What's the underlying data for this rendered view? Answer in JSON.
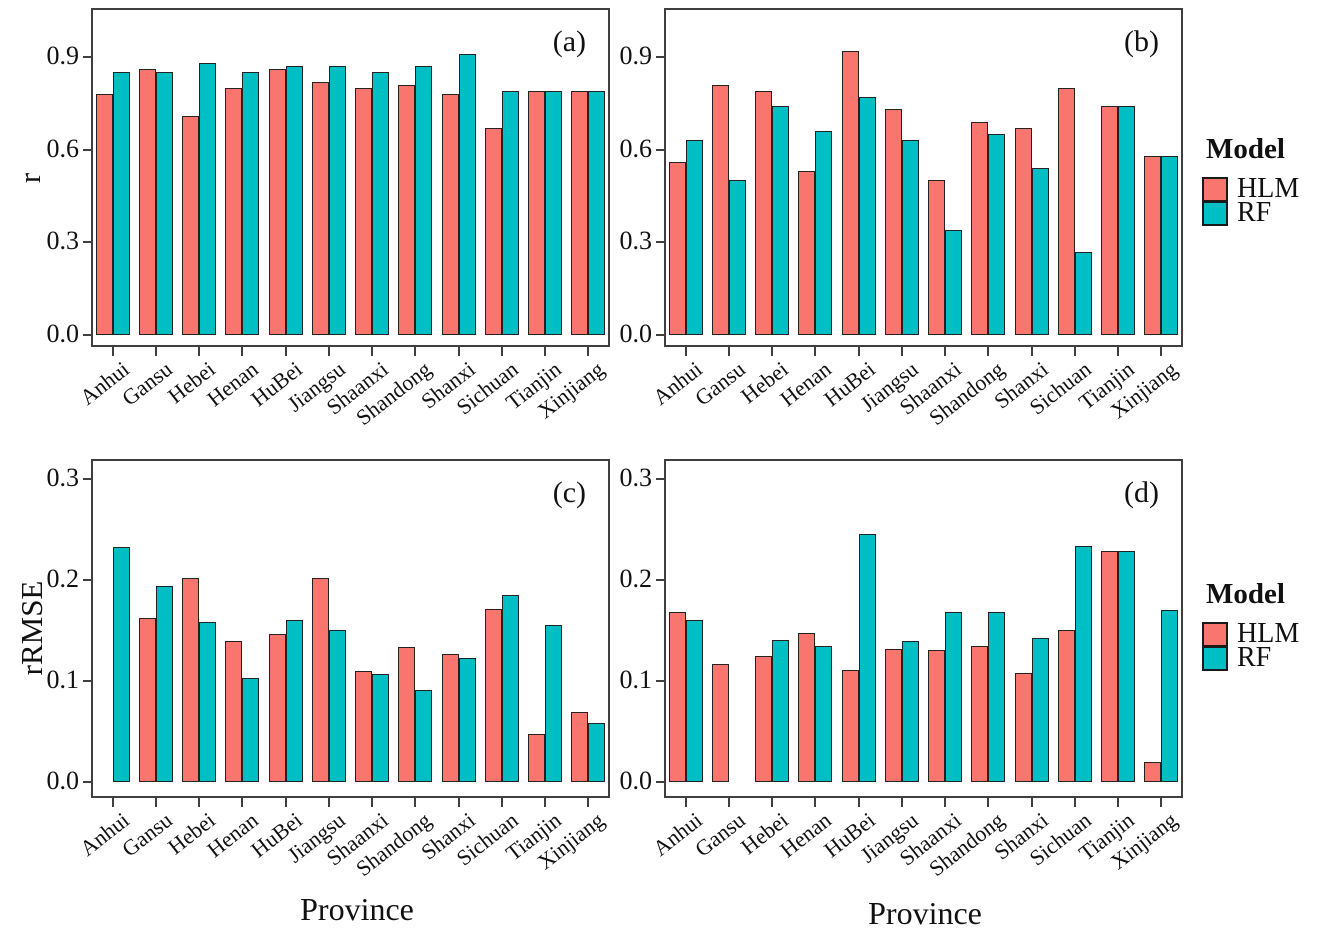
{
  "axis": {
    "x_title": "Province",
    "y_title_top": "r",
    "y_title_bottom": "rRMSE"
  },
  "legend": {
    "title": "Model",
    "entries": [
      {
        "label": "HLM",
        "color": "#F8766D"
      },
      {
        "label": "RF",
        "color": "#00BFC4"
      }
    ]
  },
  "chart_data": {
    "type": "bar",
    "grid": "off",
    "legend_position": "right",
    "categories": [
      "Anhui",
      "Gansu",
      "Hebei",
      "Henan",
      "HuBei",
      "Jiangsu",
      "Shaanxi",
      "Shandong",
      "Shanxi",
      "Sichuan",
      "Tianjin",
      "Xinjiang"
    ],
    "panels": [
      {
        "tag": "(a)",
        "metric": "r",
        "ylim": [
          0,
          1.05
        ],
        "yticks": [
          0.0,
          0.3,
          0.6,
          0.9
        ],
        "tick_decimals": 1,
        "series": [
          {
            "name": "HLM",
            "values": [
              0.78,
              0.86,
              0.71,
              0.8,
              0.86,
              0.82,
              0.8,
              0.81,
              0.78,
              0.67,
              0.79,
              0.79
            ]
          },
          {
            "name": "RF",
            "values": [
              0.85,
              0.85,
              0.88,
              0.85,
              0.87,
              0.87,
              0.85,
              0.87,
              0.91,
              0.79,
              0.79,
              0.79
            ]
          }
        ]
      },
      {
        "tag": "(b)",
        "metric": "r",
        "ylim": [
          0,
          1.05
        ],
        "yticks": [
          0.0,
          0.3,
          0.6,
          0.9
        ],
        "tick_decimals": 1,
        "series": [
          {
            "name": "HLM",
            "values": [
              0.56,
              0.81,
              0.79,
              0.53,
              0.92,
              0.73,
              0.5,
              0.69,
              0.67,
              0.8,
              0.74,
              0.58
            ]
          },
          {
            "name": "RF",
            "values": [
              0.63,
              0.5,
              0.74,
              0.66,
              0.77,
              0.63,
              0.34,
              0.65,
              0.54,
              0.27,
              0.74,
              0.58
            ]
          }
        ]
      },
      {
        "tag": "(c)",
        "metric": "rRMSE",
        "ylim": [
          0,
          0.318
        ],
        "yticks": [
          0.0,
          0.1,
          0.2,
          0.3
        ],
        "tick_decimals": 1,
        "series": [
          {
            "name": "HLM",
            "values": [
              null,
              0.162,
              0.202,
              0.14,
              0.147,
              0.202,
              0.11,
              0.134,
              0.127,
              0.171,
              0.048,
              0.069
            ]
          },
          {
            "name": "RF",
            "values": [
              0.233,
              0.194,
              0.158,
              0.103,
              0.16,
              0.15,
              0.107,
              0.091,
              0.123,
              0.185,
              0.155,
              0.058
            ]
          }
        ]
      },
      {
        "tag": "(d)",
        "metric": "rRMSE",
        "ylim": [
          0,
          0.318
        ],
        "yticks": [
          0.0,
          0.1,
          0.2,
          0.3
        ],
        "tick_decimals": 1,
        "series": [
          {
            "name": "HLM",
            "values": [
              0.168,
              0.117,
              0.125,
              0.148,
              0.111,
              0.132,
              0.131,
              0.135,
              0.108,
              0.15,
              0.229,
              0.02
            ]
          },
          {
            "name": "RF",
            "values": [
              0.16,
              null,
              0.141,
              0.135,
              0.246,
              0.14,
              0.168,
              0.168,
              0.143,
              0.234,
              0.229,
              0.17
            ]
          }
        ]
      }
    ]
  }
}
